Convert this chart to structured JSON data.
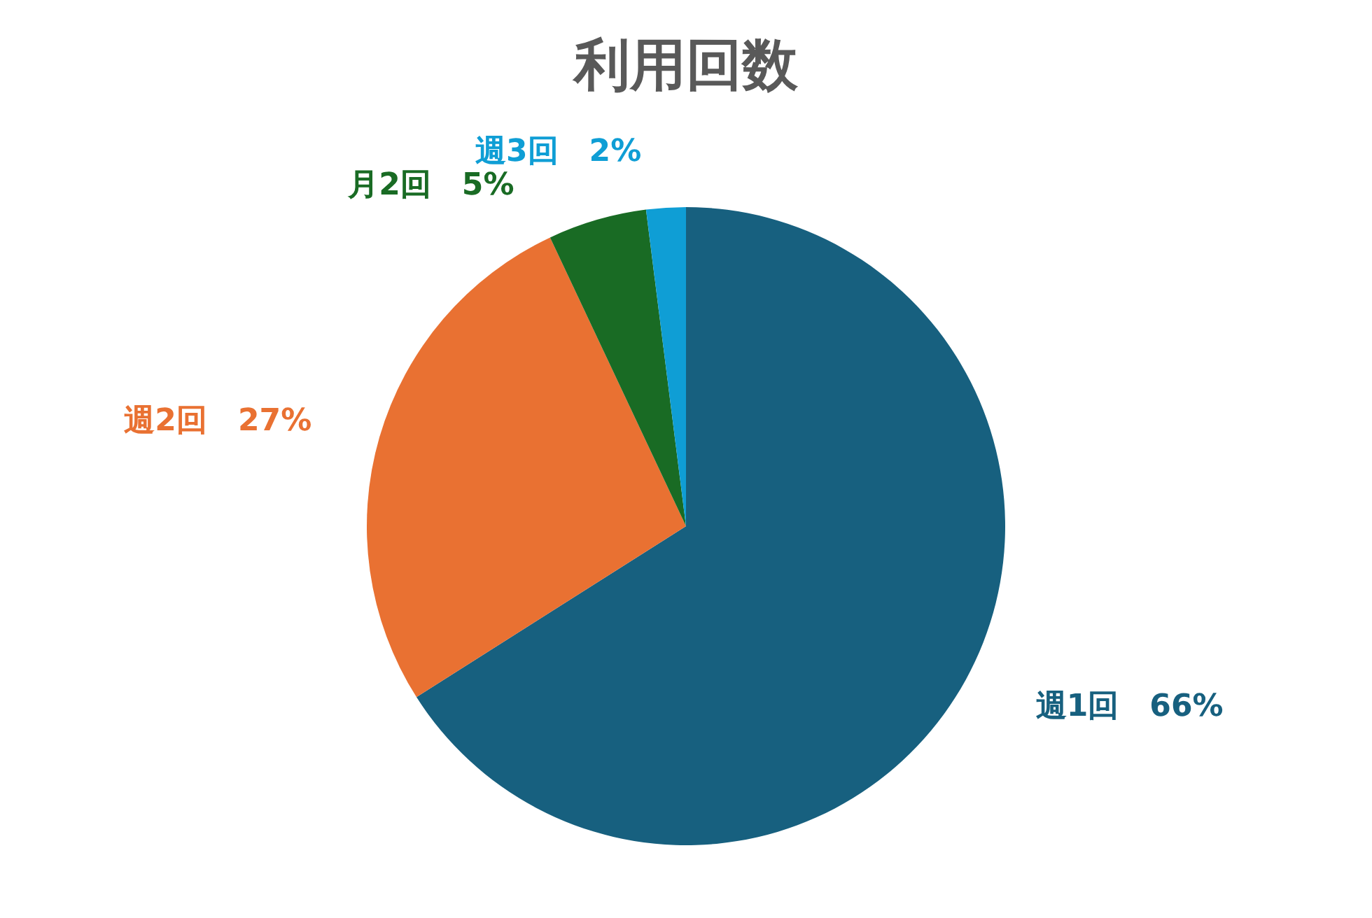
{
  "chart_data": {
    "type": "pie",
    "title": "利用回数",
    "categories": [
      "週1回",
      "週2回",
      "月2回",
      "週3回"
    ],
    "values": [
      66,
      27,
      5,
      2
    ],
    "colors": [
      "#17607f",
      "#e97132",
      "#196b24",
      "#0f9ed5"
    ],
    "value_labels": [
      "66%",
      "27%",
      "5%",
      "2%"
    ],
    "legend": false
  }
}
